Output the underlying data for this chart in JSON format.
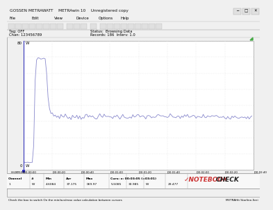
{
  "title": "GOSSEN METRAWATT    METRAwin 10    Unregistered copy",
  "tag_off": "Tag: OFF",
  "chan": "Chan: 123456789",
  "status": "Status:  Browsing Data",
  "records": "Records: 186  Interv: 1.0",
  "y_max_label": "80",
  "y_unit": "W",
  "y_min_label": "0",
  "x_labels": [
    "00:00:00",
    "00:00:20",
    "00:00:40",
    "00:01:00",
    "00:01:20",
    "00:01:40",
    "00:02:00",
    "00:02:20",
    "00:02:40"
  ],
  "hh_mm_ss": "HH:MM:SS",
  "bg_color": "#f0f0f0",
  "plot_bg_color": "#ffffff",
  "line_color": "#8888cc",
  "grid_color": "#dddddd",
  "peak_value": 69,
  "stable_value": 33,
  "noise_amplitude": 0.8,
  "col_headers": [
    "Channel",
    "#",
    "Min",
    "Avr",
    "Max"
  ],
  "cursor_info": "Curs: x: 00:03:05 (=03:01)",
  "data_row": [
    "1",
    "W",
    "4.6084",
    "37.175",
    "069.97",
    "5.5085",
    "33.985",
    "W",
    "29.477"
  ],
  "bottom_left": "Check the box to switch On the min/avs/max value calculation between cursors",
  "bottom_right": "METRAHit Starline-Seri",
  "nb_check_color": "#cc3333",
  "toolbar_icon_color": "#e0e0e0",
  "toolbar_icon_border": "#aaaaaa"
}
